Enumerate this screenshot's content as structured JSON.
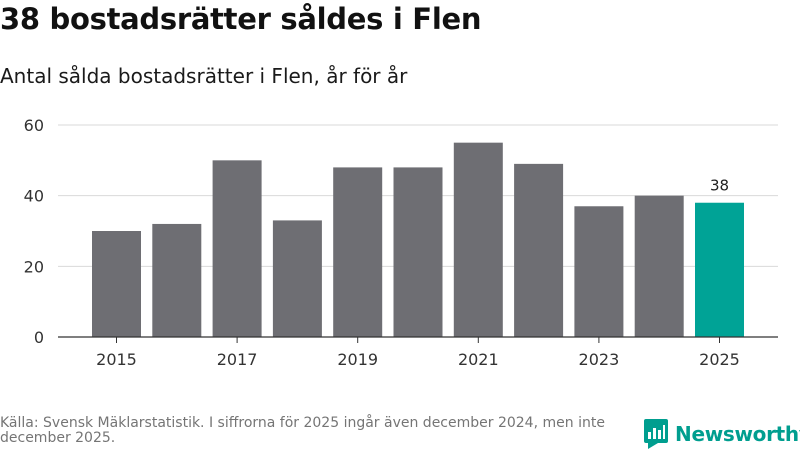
{
  "header": {
    "title": "38 bostadsrätter såldes i Flen",
    "subtitle": "Antal sålda bostadsrätter i Flen, år för år"
  },
  "chart_data": {
    "type": "bar",
    "title": "",
    "xlabel": "",
    "ylabel": "",
    "categories": [
      "2015",
      "2016",
      "2017",
      "2018",
      "2019",
      "2020",
      "2021",
      "2022",
      "2023",
      "2024",
      "2025"
    ],
    "values": [
      30,
      32,
      50,
      33,
      48,
      48,
      55,
      49,
      37,
      40,
      38
    ],
    "x_tick_labels": [
      "2015",
      "2017",
      "2019",
      "2021",
      "2023",
      "2025"
    ],
    "y_ticks": [
      0,
      20,
      40,
      60
    ],
    "ylim": [
      0,
      60
    ],
    "grid": true,
    "data_labels": [
      {
        "category": "2025",
        "value": "38"
      }
    ],
    "highlight_category": "2025"
  },
  "colors": {
    "bar": "#6e6e73",
    "highlight": "#00a396",
    "grid": "#d9d9d9",
    "axis": "#333333",
    "brand": "#009e8f"
  },
  "footer": {
    "source": "Källa: Svensk Mäklarstatistik. I siffrorna för 2025 ingår även december 2024, men inte december 2025."
  },
  "brand": {
    "name": "Newsworthy",
    "icon": "newsworthy-logo-icon"
  }
}
